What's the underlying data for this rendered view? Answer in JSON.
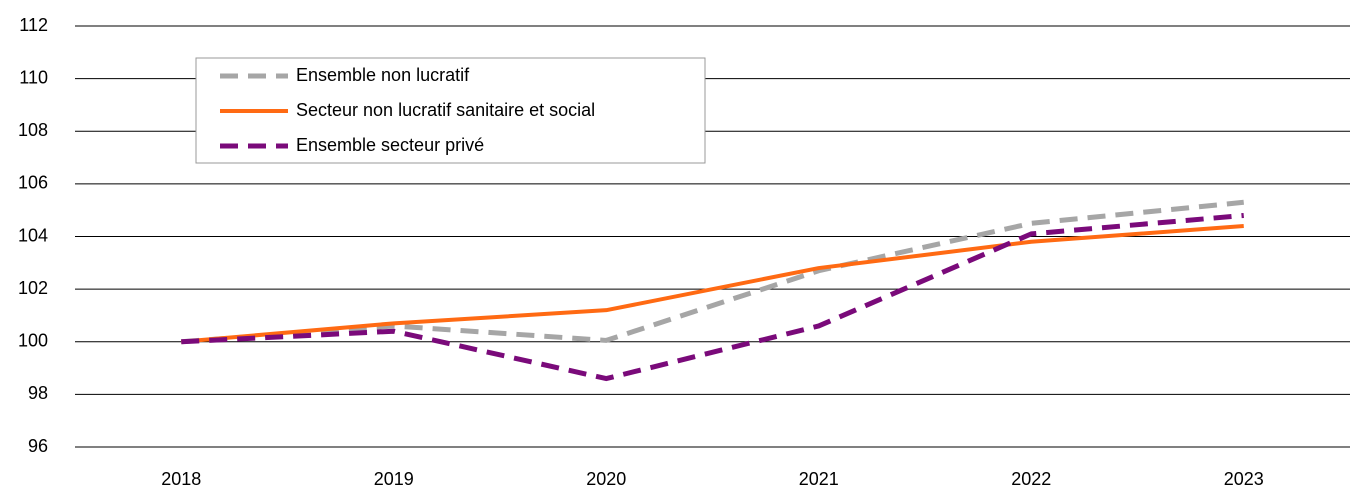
{
  "chart_data": {
    "type": "line",
    "categories": [
      "2018",
      "2019",
      "2020",
      "2021",
      "2022",
      "2023"
    ],
    "series": [
      {
        "name": "Ensemble non lucratif",
        "color": "#a6a6a6",
        "dashed": true,
        "values": [
          100,
          100.6,
          100.05,
          102.7,
          104.5,
          105.3
        ]
      },
      {
        "name": "Secteur non lucratif sanitaire et social",
        "color": "#ff6a13",
        "dashed": false,
        "values": [
          100,
          100.7,
          101.2,
          102.8,
          103.8,
          104.4
        ]
      },
      {
        "name": "Ensemble secteur privé",
        "color": "#7a0a7a",
        "dashed": true,
        "values": [
          100,
          100.4,
          98.6,
          100.6,
          104.1,
          104.8
        ]
      }
    ],
    "ylim": [
      96,
      112
    ],
    "yticks": [
      96,
      98,
      100,
      102,
      104,
      106,
      108,
      110,
      112
    ],
    "grid": true,
    "legend": "upper left"
  }
}
